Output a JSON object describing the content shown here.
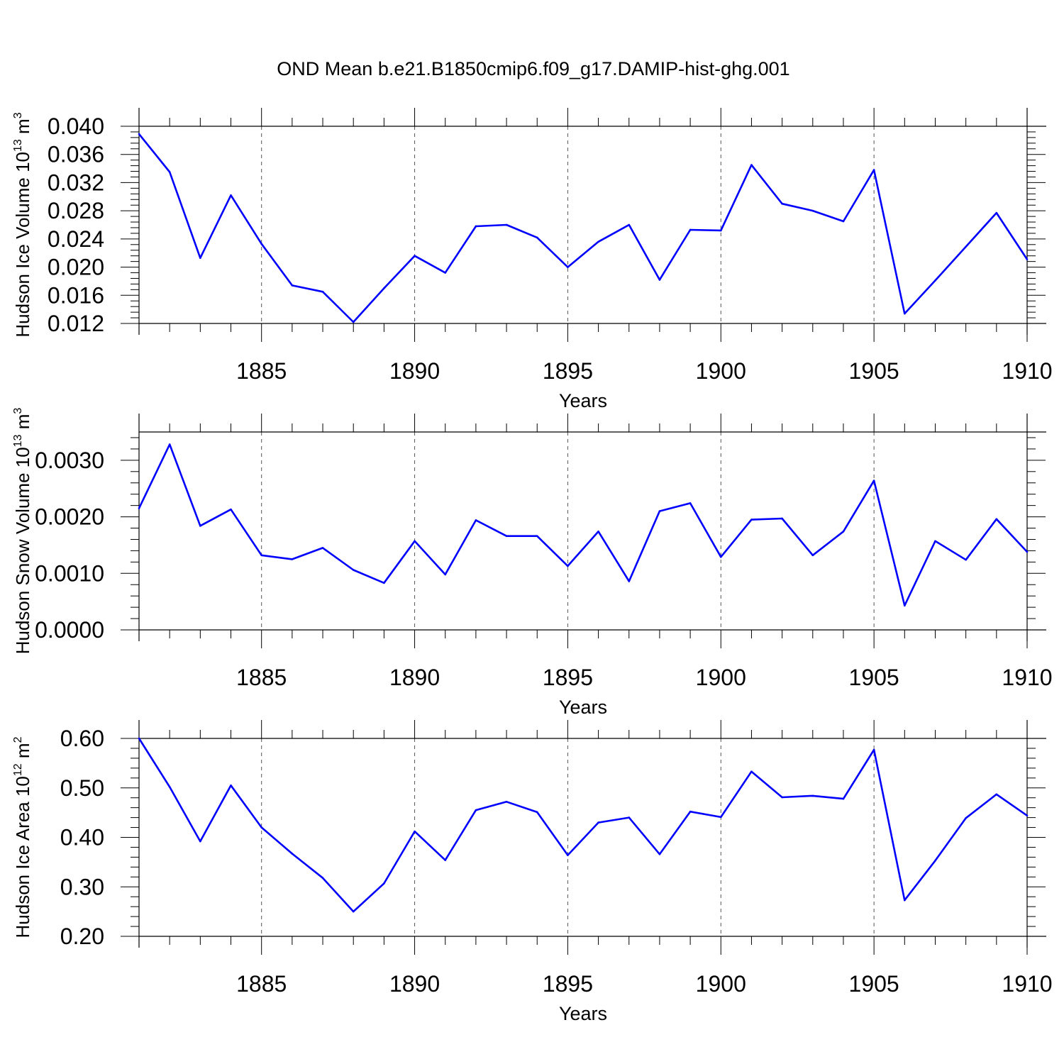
{
  "title": "OND Mean b.e21.B1850cmip6.f09_g17.DAMIP-hist-ghg.001",
  "line_color": "#0000ff",
  "chart_data": [
    {
      "type": "line",
      "ylabel": "Hudson Ice Volume 10",
      "ylabel_exp": "13",
      "ylabel_unit": " m",
      "ylabel_unit_exp": "3",
      "xlabel": "Years",
      "ylim": [
        0.012,
        0.04
      ],
      "yticks": [
        "0.012",
        "0.016",
        "0.020",
        "0.024",
        "0.028",
        "0.032",
        "0.036",
        "0.040"
      ],
      "xlim": [
        1881,
        1910
      ],
      "xticks": [
        "1885",
        "1890",
        "1895",
        "1900",
        "1905",
        "1910"
      ],
      "grid": "dashed vertical lines at labeled years",
      "series": [
        {
          "x": [
            1881,
            1882,
            1883,
            1884,
            1885,
            1886,
            1887,
            1888,
            1889,
            1890,
            1891,
            1892,
            1893,
            1894,
            1895,
            1896,
            1897,
            1898,
            1899,
            1900,
            1901,
            1902,
            1903,
            1904,
            1905,
            1906,
            1907,
            1908,
            1909,
            1910
          ],
          "values": [
            0.0389,
            0.0335,
            0.0213,
            0.0302,
            0.0233,
            0.0174,
            0.0165,
            0.0122,
            0.017,
            0.0216,
            0.0192,
            0.0258,
            0.026,
            0.0242,
            0.02,
            0.0236,
            0.026,
            0.0182,
            0.0253,
            0.0252,
            0.0345,
            0.029,
            0.028,
            0.0265,
            0.0338,
            0.0134,
            0.0181,
            0.0229,
            0.0277,
            0.0211
          ]
        }
      ]
    },
    {
      "type": "line",
      "ylabel": "Hudson Snow Volume 10",
      "ylabel_exp": "13",
      "ylabel_unit": " m",
      "ylabel_unit_exp": "3",
      "xlabel": "Years",
      "ylim": [
        0.0,
        0.0035
      ],
      "yticks": [
        "0.0000",
        "0.0010",
        "0.0020",
        "0.0030"
      ],
      "xlim": [
        1881,
        1910
      ],
      "xticks": [
        "1885",
        "1890",
        "1895",
        "1900",
        "1905",
        "1910"
      ],
      "grid": "dashed vertical lines at labeled years",
      "series": [
        {
          "x": [
            1881,
            1882,
            1883,
            1884,
            1885,
            1886,
            1887,
            1888,
            1889,
            1890,
            1891,
            1892,
            1893,
            1894,
            1895,
            1896,
            1897,
            1898,
            1899,
            1900,
            1901,
            1902,
            1903,
            1904,
            1905,
            1906,
            1907,
            1908,
            1909,
            1910
          ],
          "values": [
            0.00215,
            0.00328,
            0.00184,
            0.00213,
            0.00132,
            0.00125,
            0.00145,
            0.00106,
            0.00083,
            0.00157,
            0.00098,
            0.00194,
            0.00166,
            0.00166,
            0.00113,
            0.00174,
            0.00086,
            0.0021,
            0.00224,
            0.00129,
            0.00195,
            0.00197,
            0.00132,
            0.00174,
            0.00264,
            0.00043,
            0.00157,
            0.00124,
            0.00196,
            0.00138
          ]
        }
      ]
    },
    {
      "type": "line",
      "ylabel": "Hudson Ice Area 10",
      "ylabel_exp": "12",
      "ylabel_unit": " m",
      "ylabel_unit_exp": "2",
      "xlabel": "Years",
      "ylim": [
        0.2,
        0.6
      ],
      "yticks": [
        "0.20",
        "0.30",
        "0.40",
        "0.50",
        "0.60"
      ],
      "xlim": [
        1881,
        1910
      ],
      "xticks": [
        "1885",
        "1890",
        "1895",
        "1900",
        "1905",
        "1910"
      ],
      "grid": "dashed vertical lines at labeled years",
      "series": [
        {
          "x": [
            1881,
            1882,
            1883,
            1884,
            1885,
            1886,
            1887,
            1888,
            1889,
            1890,
            1891,
            1892,
            1893,
            1894,
            1895,
            1896,
            1897,
            1898,
            1899,
            1900,
            1901,
            1902,
            1903,
            1904,
            1905,
            1906,
            1907,
            1908,
            1909,
            1910
          ],
          "values": [
            0.6,
            0.502,
            0.392,
            0.505,
            0.42,
            0.367,
            0.318,
            0.25,
            0.307,
            0.412,
            0.354,
            0.455,
            0.472,
            0.451,
            0.364,
            0.43,
            0.44,
            0.366,
            0.452,
            0.441,
            0.533,
            0.481,
            0.484,
            0.478,
            0.577,
            0.273,
            0.353,
            0.439,
            0.487,
            0.444
          ]
        }
      ]
    }
  ]
}
